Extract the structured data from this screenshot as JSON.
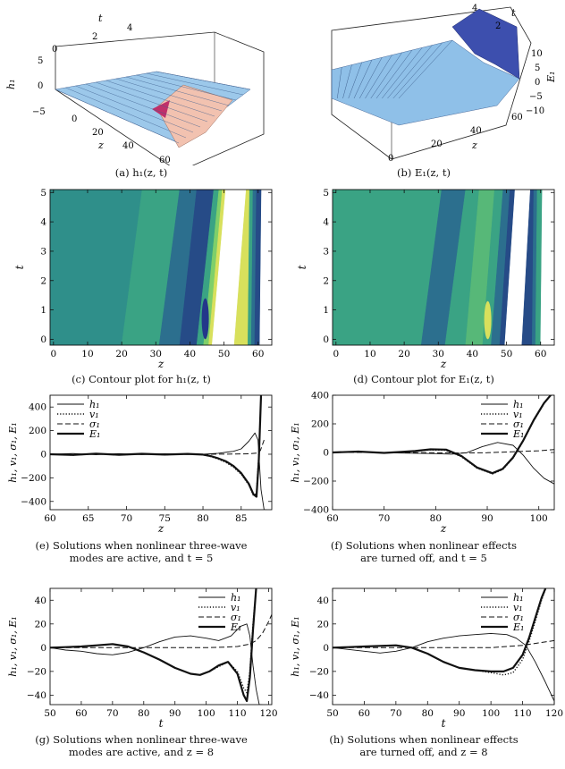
{
  "captions": {
    "a": "(a) h₁(z, t)",
    "b": "(b) E₁(z, t)",
    "c": "(c) Contour plot for h₁(z, t)",
    "d": "(d) Contour plot for E₁(z, t)",
    "e1": "(e) Solutions when nonlinear three-wave",
    "e2": "modes are active, and t = 5",
    "f1": "(f) Solutions when nonlinear effects",
    "f2": "are turned off, and t = 5",
    "g1": "(g) Solutions when nonlinear three-wave",
    "g2": "modes are active, and z = 8",
    "h1": "(h) Solutions when nonlinear effects",
    "h2": "are turned off, and z = 8"
  },
  "surface_labels": {
    "a": {
      "t_label": "t",
      "t_ticks": [
        "2",
        "4"
      ],
      "z_label": "z",
      "z_ticks": [
        "0",
        "20",
        "40",
        "60"
      ],
      "v_label": "h₁",
      "v_ticks": [
        "5",
        "0",
        "−5"
      ],
      "corner": "0"
    },
    "b": {
      "t_label": "t",
      "t_ticks": [
        "4",
        "2"
      ],
      "z_label": "z",
      "z_ticks": [
        "0",
        "20",
        "40",
        "60"
      ],
      "v_label": "E₁",
      "v_ticks": [
        "10",
        "5",
        "0",
        "−5",
        "−10"
      ]
    }
  },
  "colors": {
    "surface_blue": "#8fbfe6",
    "surface_pink": "#f2c2b0",
    "surface_dark": "#3d4fae",
    "line": "#111111"
  },
  "chart_data": [
    {
      "type": "heatmap",
      "id": "c",
      "xlabel": "z",
      "ylabel": "t",
      "xlim": [
        -1,
        64
      ],
      "ylim": [
        -0.2,
        5.1
      ],
      "xticks": [
        0,
        10,
        20,
        30,
        40,
        50,
        60
      ],
      "yticks": [
        0,
        1,
        2,
        3,
        4,
        5
      ],
      "bands": [
        {
          "z0": 26,
          "z1": 20,
          "color": "#2f8f8a"
        },
        {
          "z0": 37,
          "z1": 31,
          "color": "#3aa384"
        },
        {
          "z0": 42,
          "z1": 37,
          "color": "#2c6f8e"
        },
        {
          "z0": 47,
          "z1": 42,
          "color": "#264b87"
        },
        {
          "z0": 48.5,
          "z1": 44,
          "color": "#3aa384"
        },
        {
          "z0": 49.5,
          "z1": 45.5,
          "color": "#7fcf6a"
        },
        {
          "z0": 50.5,
          "z1": 46.5,
          "color": "#d8e05c"
        },
        {
          "z0": 56.5,
          "z1": 53,
          "color": "#ffffff"
        },
        {
          "z0": 57.5,
          "z1": 57,
          "color": "#d8e05c"
        },
        {
          "z0": 58.5,
          "z1": 58,
          "color": "#3aa384"
        },
        {
          "z0": 59.5,
          "z1": 59,
          "color": "#2c6f8e"
        },
        {
          "z0": 61,
          "z1": 60.5,
          "color": "#264b87"
        },
        {
          "z0": 64,
          "z1": 64,
          "color": "#ffffff"
        }
      ],
      "base_color": "#2c8a8c",
      "feature": {
        "z": 44.5,
        "t0": 0,
        "t1": 1.4,
        "color": "#23378a"
      }
    },
    {
      "type": "heatmap",
      "id": "d",
      "xlabel": "z",
      "ylabel": "t",
      "xlim": [
        -1,
        64
      ],
      "ylim": [
        -0.2,
        5.1
      ],
      "xticks": [
        0,
        10,
        20,
        30,
        40,
        50,
        60
      ],
      "yticks": [
        0,
        1,
        2,
        3,
        4,
        5
      ],
      "bands": [
        {
          "z0": 31,
          "z1": 25,
          "color": "#3aa384"
        },
        {
          "z0": 38,
          "z1": 32,
          "color": "#2c6f8e"
        },
        {
          "z0": 42,
          "z1": 38,
          "color": "#3aa384"
        },
        {
          "z0": 46.5,
          "z1": 43,
          "color": "#57b878"
        },
        {
          "z0": 49,
          "z1": 45.5,
          "color": "#3aa384"
        },
        {
          "z0": 51,
          "z1": 48,
          "color": "#2c6f8e"
        },
        {
          "z0": 52.5,
          "z1": 49.5,
          "color": "#264b87"
        },
        {
          "z0": 57,
          "z1": 54.5,
          "color": "#ffffff"
        },
        {
          "z0": 58,
          "z1": 57.5,
          "color": "#264b87"
        },
        {
          "z0": 59,
          "z1": 58.5,
          "color": "#2c6f8e"
        },
        {
          "z0": 60.5,
          "z1": 60,
          "color": "#3aa384"
        },
        {
          "z0": 64,
          "z1": 64,
          "color": "#ffffff"
        }
      ],
      "base_color": "#2f8f8a",
      "feature": {
        "z": 44.5,
        "t0": 0,
        "t1": 1.3,
        "color": "#d8e05c"
      }
    },
    {
      "type": "line",
      "id": "e",
      "xlabel": "z",
      "ylabel": "h₁, v₁, σ₁, E₁",
      "xlim": [
        60,
        89
      ],
      "ylim": [
        -470,
        500
      ],
      "xticks": [
        60,
        65,
        70,
        75,
        80,
        85
      ],
      "yticks": [
        -400,
        -200,
        0,
        200,
        400
      ],
      "series": [
        {
          "name": "h₁",
          "style": "thin",
          "x": [
            60,
            63,
            66,
            69,
            72,
            75,
            78,
            80,
            82,
            84,
            85,
            86,
            86.8,
            87.2,
            87.6,
            88.0,
            88.3
          ],
          "y": [
            0,
            6,
            -4,
            5,
            -3,
            4,
            -2,
            0,
            8,
            25,
            45,
            110,
            180,
            120,
            -300,
            -470,
            -470
          ]
        },
        {
          "name": "v₁",
          "style": "dotted",
          "x": [
            60,
            63,
            66,
            69,
            72,
            75,
            78,
            80,
            81,
            82,
            83,
            84,
            85,
            86,
            86.6,
            87.0,
            87.3,
            87.6
          ],
          "y": [
            0,
            -8,
            4,
            -6,
            3,
            -4,
            2,
            -5,
            -20,
            -40,
            -70,
            -110,
            -170,
            -260,
            -350,
            -330,
            0,
            500
          ]
        },
        {
          "name": "σ₁",
          "style": "dashed",
          "x": [
            60,
            70,
            80,
            84,
            86,
            87,
            87.5,
            88
          ],
          "y": [
            0,
            0,
            0,
            1,
            4,
            10,
            30,
            120
          ]
        },
        {
          "name": "E₁",
          "style": "thick",
          "x": [
            60,
            63,
            66,
            69,
            72,
            75,
            78,
            80,
            81,
            82,
            83,
            84,
            85,
            86,
            86.6,
            87.0,
            87.3,
            87.6
          ],
          "y": [
            0,
            -6,
            5,
            -5,
            4,
            -3,
            3,
            -3,
            -15,
            -35,
            -60,
            -100,
            -160,
            -250,
            -340,
            -360,
            -50,
            500
          ]
        }
      ],
      "legend": "top-left"
    },
    {
      "type": "line",
      "id": "f",
      "xlabel": "z",
      "ylabel": "h₁, v₁, σ₁, E₁",
      "xlim": [
        60,
        103
      ],
      "ylim": [
        -400,
        400
      ],
      "xticks": [
        60,
        70,
        80,
        90,
        100
      ],
      "yticks": [
        -400,
        -200,
        0,
        200,
        400
      ],
      "series": [
        {
          "name": "h₁",
          "style": "thin",
          "x": [
            60,
            65,
            70,
            75,
            80,
            83,
            86,
            89,
            92,
            95,
            97,
            99,
            101,
            103
          ],
          "y": [
            0,
            3,
            -2,
            -5,
            -8,
            -12,
            -2,
            40,
            70,
            50,
            -20,
            -110,
            -180,
            -220
          ]
        },
        {
          "name": "v₁",
          "style": "dotted",
          "x": [
            60,
            65,
            70,
            73,
            76,
            79,
            82,
            85,
            88,
            91,
            93,
            95,
            97,
            99,
            101,
            103
          ],
          "y": [
            0,
            5,
            -3,
            2,
            8,
            18,
            15,
            -30,
            -110,
            -150,
            -120,
            -40,
            80,
            220,
            340,
            430
          ]
        },
        {
          "name": "σ₁",
          "style": "dashed",
          "x": [
            60,
            70,
            80,
            85,
            90,
            95,
            100,
            103
          ],
          "y": [
            0,
            0,
            -2,
            -4,
            -2,
            5,
            12,
            20
          ]
        },
        {
          "name": "E₁",
          "style": "thick",
          "x": [
            60,
            65,
            70,
            73,
            76,
            79,
            82,
            85,
            88,
            91,
            93,
            95,
            97,
            99,
            101,
            103
          ],
          "y": [
            0,
            6,
            -3,
            3,
            10,
            22,
            20,
            -25,
            -105,
            -145,
            -115,
            -35,
            85,
            225,
            345,
            430
          ]
        }
      ],
      "legend": "top-right"
    },
    {
      "type": "line",
      "id": "g",
      "xlabel": "t",
      "ylabel": "h₁, v₁, σ₁, E₁",
      "xlim": [
        50,
        121
      ],
      "ylim": [
        -48,
        50
      ],
      "xticks": [
        50,
        60,
        70,
        80,
        90,
        100,
        110,
        120
      ],
      "yticks": [
        -40,
        -20,
        0,
        20,
        40
      ],
      "series": [
        {
          "name": "h₁",
          "style": "thin",
          "x": [
            50,
            55,
            60,
            65,
            70,
            75,
            80,
            85,
            90,
            95,
            100,
            104,
            108,
            111,
            113,
            114,
            115,
            116,
            117,
            118
          ],
          "y": [
            0,
            -2,
            -3,
            -5,
            -6,
            -4,
            0,
            5,
            9,
            10,
            8,
            6,
            10,
            18,
            20,
            10,
            -15,
            -35,
            -48,
            -48
          ]
        },
        {
          "name": "v₁",
          "style": "dotted",
          "x": [
            50,
            55,
            60,
            65,
            70,
            75,
            80,
            85,
            90,
            95,
            98,
            101,
            104,
            107,
            110,
            112,
            113,
            114,
            115,
            116
          ],
          "y": [
            0,
            0.5,
            1,
            2,
            3,
            1,
            -4,
            -10,
            -17,
            -22,
            -23,
            -20,
            -16,
            -12,
            -20,
            -34,
            -38,
            -20,
            20,
            50
          ]
        },
        {
          "name": "σ₁",
          "style": "dashed",
          "x": [
            50,
            70,
            90,
            100,
            106,
            110,
            114,
            116,
            118,
            120,
            121
          ],
          "y": [
            0,
            0,
            0,
            0,
            0.5,
            1,
            3,
            6,
            12,
            22,
            28
          ]
        },
        {
          "name": "E₁",
          "style": "thick",
          "x": [
            50,
            55,
            60,
            65,
            70,
            75,
            80,
            85,
            90,
            95,
            98,
            101,
            104,
            107,
            110,
            112,
            113,
            114,
            115,
            116
          ],
          "y": [
            0,
            0.5,
            1,
            2,
            3,
            1,
            -4,
            -10,
            -17,
            -22,
            -23,
            -20,
            -15,
            -12,
            -22,
            -40,
            -45,
            -25,
            15,
            50
          ]
        }
      ],
      "legend": "top-right"
    },
    {
      "type": "line",
      "id": "h",
      "xlabel": "t",
      "ylabel": "h₁, v₁, σ₁, E₁",
      "xlim": [
        50,
        120
      ],
      "ylim": [
        -48,
        50
      ],
      "xticks": [
        50,
        60,
        70,
        80,
        90,
        100,
        110,
        120
      ],
      "yticks": [
        -40,
        -20,
        0,
        20,
        40
      ],
      "series": [
        {
          "name": "h₁",
          "style": "thin",
          "x": [
            50,
            55,
            60,
            65,
            70,
            75,
            80,
            85,
            90,
            95,
            100,
            105,
            108,
            111,
            114,
            117,
            120
          ],
          "y": [
            0,
            -1.5,
            -3,
            -4.5,
            -3,
            0,
            5,
            8,
            10,
            11,
            12,
            11,
            8,
            2,
            -12,
            -28,
            -45
          ]
        },
        {
          "name": "v₁",
          "style": "dotted",
          "x": [
            50,
            55,
            60,
            65,
            70,
            75,
            80,
            85,
            90,
            95,
            100,
            104,
            107,
            110,
            112,
            114,
            116,
            118
          ],
          "y": [
            0,
            0.5,
            1,
            1.5,
            2,
            0,
            -5,
            -12,
            -17,
            -19,
            -21,
            -23,
            -21,
            -10,
            5,
            22,
            40,
            55
          ]
        },
        {
          "name": "σ₁",
          "style": "dashed",
          "x": [
            50,
            70,
            90,
            100,
            110,
            115,
            120
          ],
          "y": [
            0,
            0,
            0,
            0,
            2,
            4,
            6
          ]
        },
        {
          "name": "E₁",
          "style": "thick",
          "x": [
            50,
            55,
            60,
            65,
            70,
            75,
            80,
            85,
            90,
            95,
            100,
            104,
            107,
            110,
            112,
            114,
            116,
            118
          ],
          "y": [
            0,
            0.5,
            1,
            1.5,
            2,
            0,
            -5,
            -12,
            -17,
            -19,
            -20,
            -20,
            -17,
            -6,
            8,
            25,
            42,
            55
          ]
        }
      ],
      "legend": "top-right"
    }
  ]
}
